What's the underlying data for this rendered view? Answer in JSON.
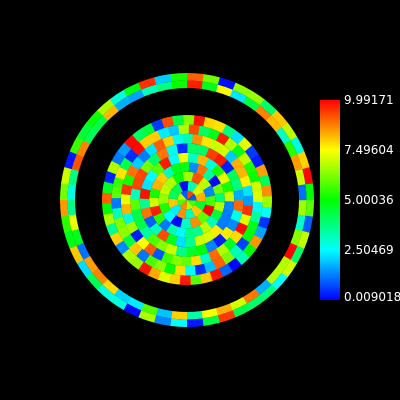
{
  "chart_data": {
    "type": "heatmap",
    "title": "",
    "field": "random scalar on annular/polar mesh",
    "range": [
      0.009018,
      9.99171
    ],
    "colormap": "rainbow",
    "colorbar": {
      "placement": "right",
      "ticks": [
        {
          "value": 9.99171,
          "label": "9.99171"
        },
        {
          "value": 7.49604,
          "label": "7.49604"
        },
        {
          "value": 5.00036,
          "label": "5.00036"
        },
        {
          "value": 2.50469,
          "label": "2.50469"
        },
        {
          "value": 0.009018,
          "label": "0.009018"
        }
      ]
    },
    "mesh": {
      "outer_annulus": {
        "rings": 2,
        "segments": 48
      },
      "inner_disc": {
        "rings": 9,
        "segments_outer": 48
      }
    }
  }
}
